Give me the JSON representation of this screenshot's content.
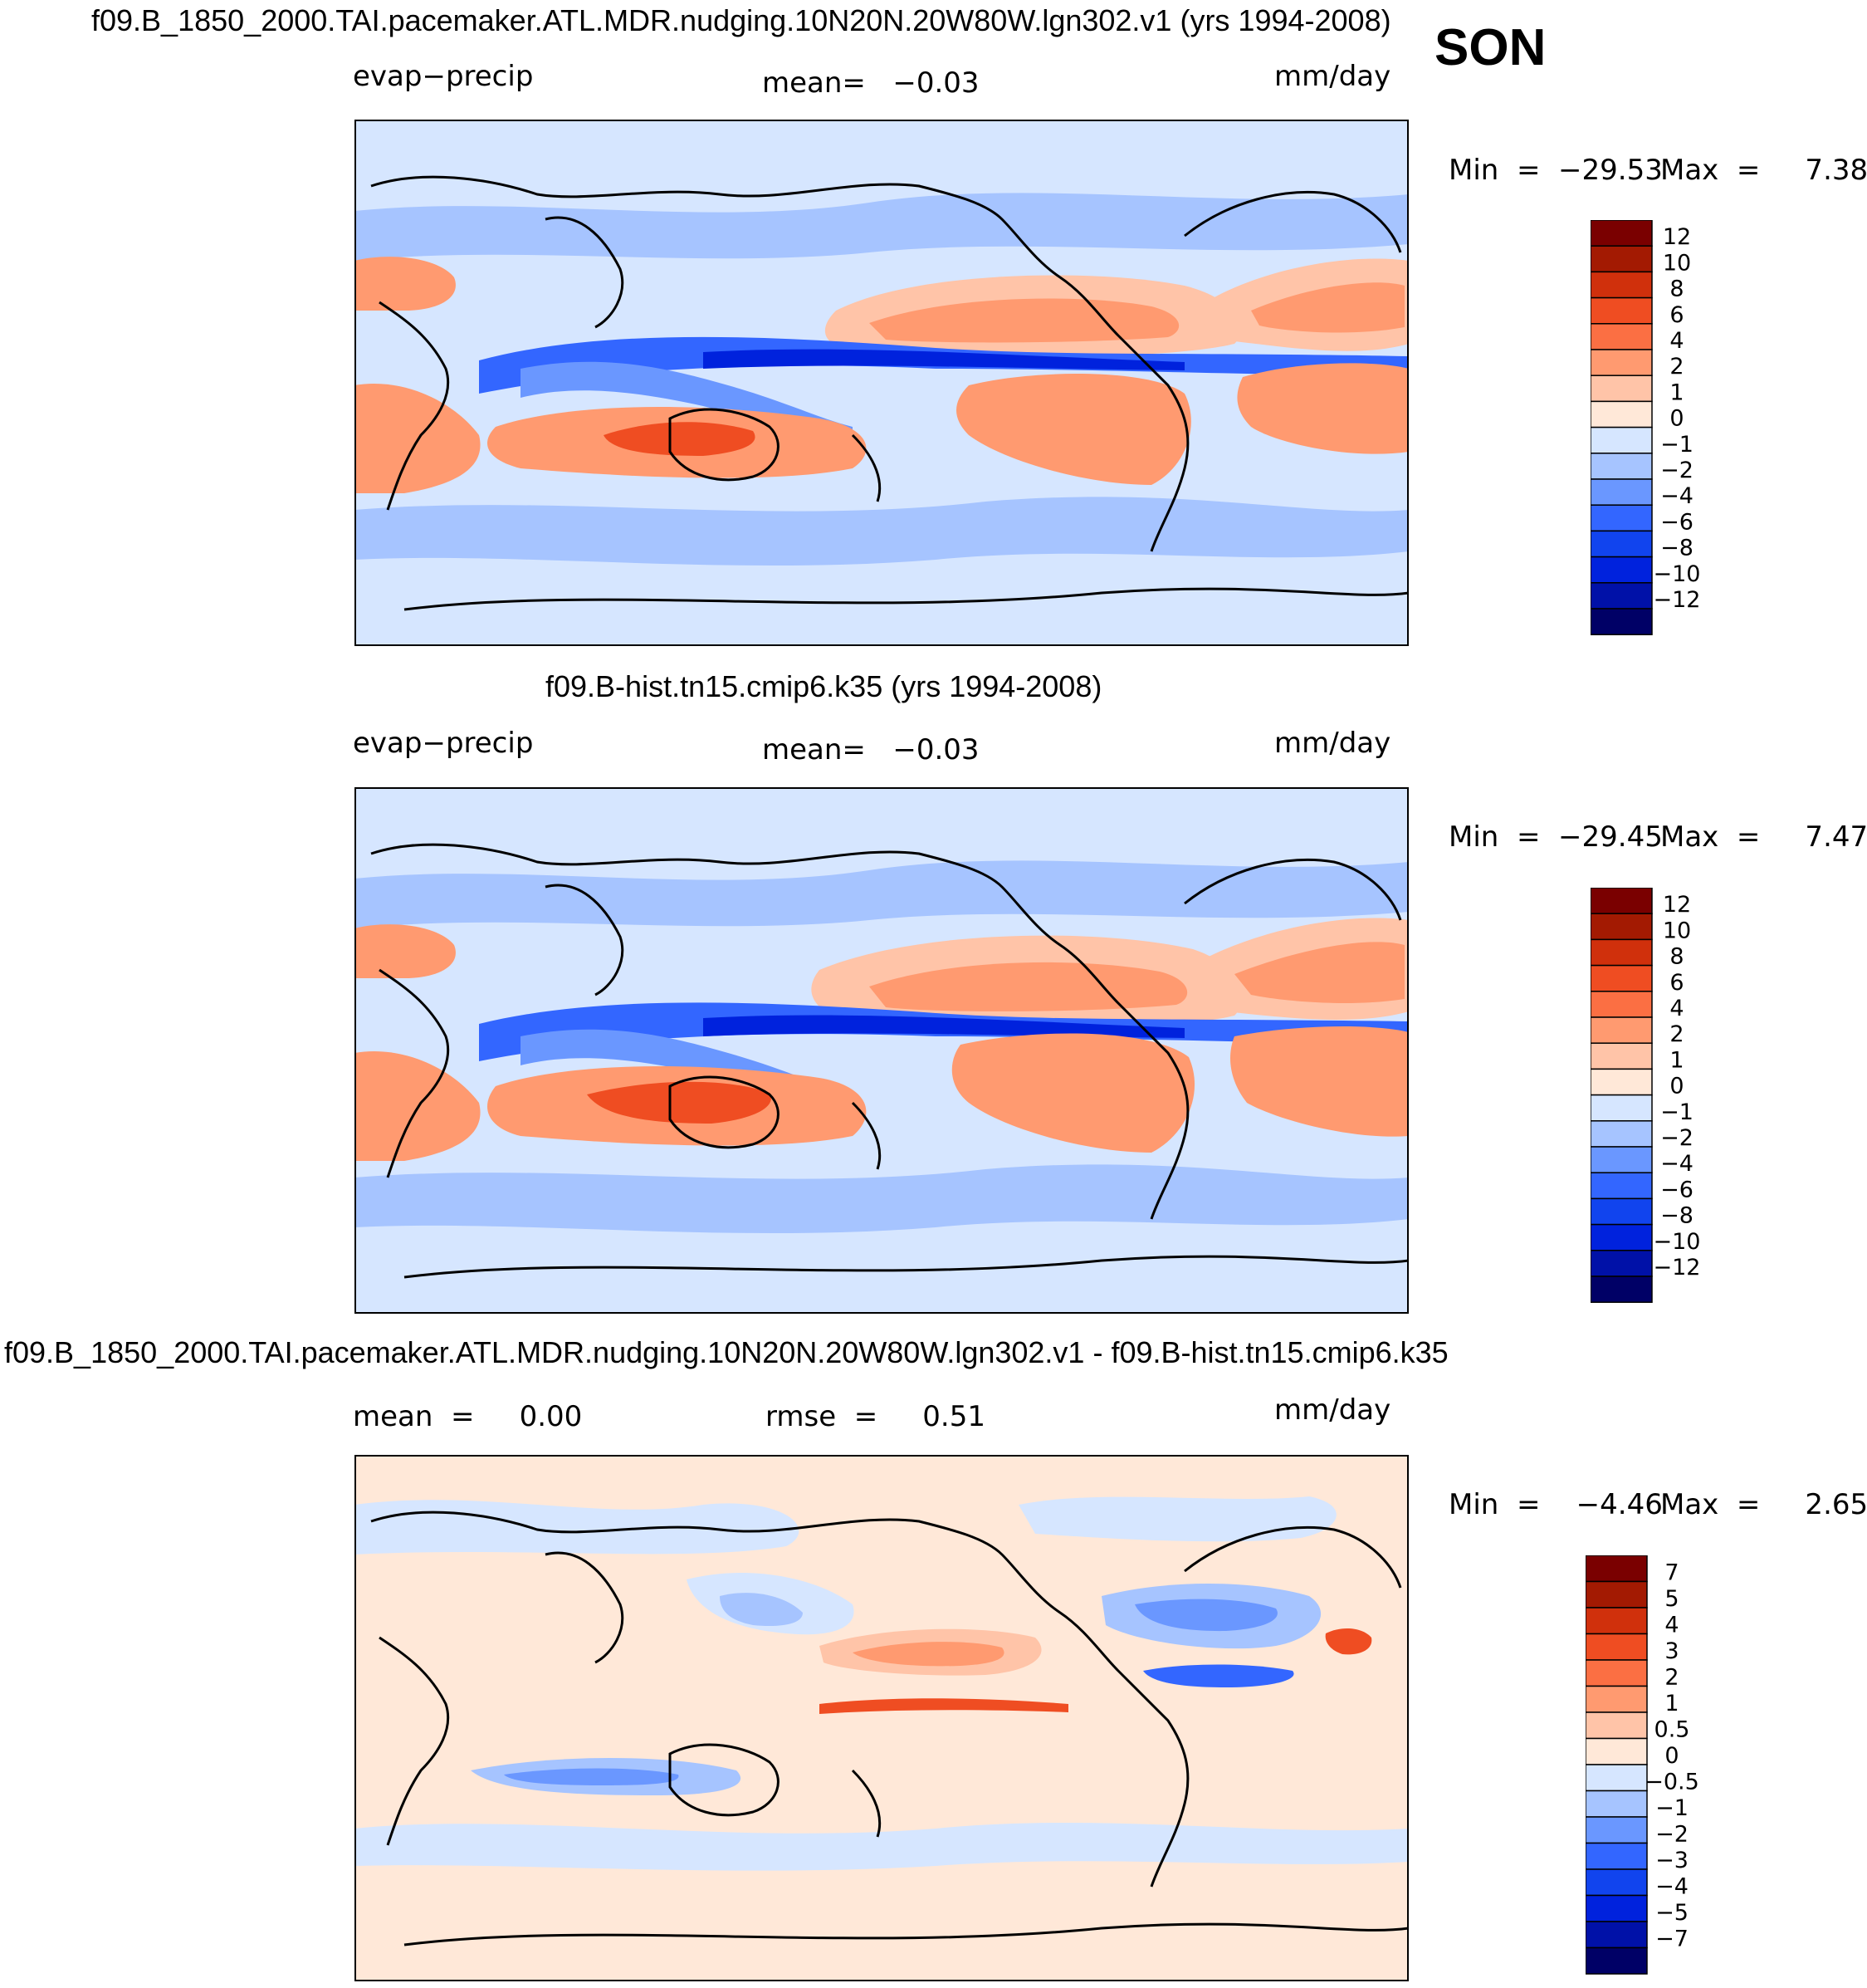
{
  "season": "SON",
  "colors": {
    "field_palette": [
      "#000066",
      "#0011a8",
      "#0022dd",
      "#1144ee",
      "#3366ff",
      "#6a97ff",
      "#a6c4ff",
      "#d6e6ff",
      "#ffe8d8",
      "#ffc4a8",
      "#ff9a70",
      "#fb6f43",
      "#ef4d22",
      "#d0300c",
      "#a31a02",
      "#7a0000"
    ],
    "diff_palette": [
      "#000066",
      "#0011a8",
      "#0022dd",
      "#1144ee",
      "#3366ff",
      "#6a97ff",
      "#a6c4ff",
      "#d6e6ff",
      "#ffe8d8",
      "#ffc4a8",
      "#ff9a70",
      "#fb6f43",
      "#ef4d22",
      "#d0300c",
      "#a31a02",
      "#7a0000"
    ]
  },
  "panels": [
    {
      "title": "f09.B_1850_2000.TAI.pacemaker.ATL.MDR.nudging.10N20N.20W80W.lgn302.v1 (yrs 1994-2008)",
      "left_label": "evap−precip",
      "center_label": "mean=   −0.03",
      "units": "mm/day",
      "min_label": "Min  =  −29.53",
      "max_label": "Max  =     7.38",
      "colorbar_ticks": [
        "12",
        "10",
        "8",
        "6",
        "4",
        "2",
        "1",
        "0",
        "−1",
        "−2",
        "−4",
        "−6",
        "−8",
        "−10",
        "−12"
      ]
    },
    {
      "title": "f09.B-hist.tn15.cmip6.k35 (yrs 1994-2008)",
      "left_label": "evap−precip",
      "center_label": "mean=   −0.03",
      "units": "mm/day",
      "min_label": "Min  =  −29.45",
      "max_label": "Max  =     7.47",
      "colorbar_ticks": [
        "12",
        "10",
        "8",
        "6",
        "4",
        "2",
        "1",
        "0",
        "−1",
        "−2",
        "−4",
        "−6",
        "−8",
        "−10",
        "−12"
      ]
    },
    {
      "title": "f09.B_1850_2000.TAI.pacemaker.ATL.MDR.nudging.10N20N.20W80W.lgn302.v1 - f09.B-hist.tn15.cmip6.k35",
      "left_label": "mean  =     0.00",
      "center_label": "rmse  =     0.51",
      "units": "mm/day",
      "min_label": "Min  =    −4.46",
      "max_label": "Max  =     2.65",
      "colorbar_ticks": [
        "7",
        "5",
        "4",
        "3",
        "2",
        "1",
        "0.5",
        "0",
        "−0.5",
        "−1",
        "−2",
        "−3",
        "−4",
        "−5",
        "−7"
      ]
    }
  ]
}
